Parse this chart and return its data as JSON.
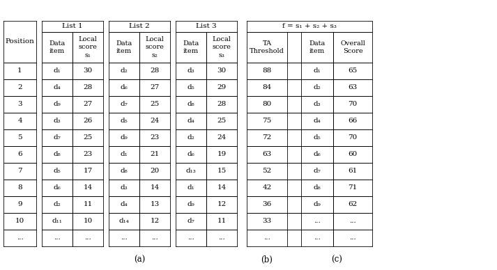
{
  "positions": [
    "1",
    "2",
    "3",
    "4",
    "5",
    "6",
    "7",
    "8",
    "9",
    "10",
    "..."
  ],
  "list1_data": [
    "d₁",
    "d₄",
    "d₉",
    "d₃",
    "d₇",
    "d₈",
    "d₅",
    "d₆",
    "d₂",
    "d₁₁",
    "..."
  ],
  "list1_scores": [
    "30",
    "28",
    "27",
    "26",
    "25",
    "23",
    "17",
    "14",
    "11",
    "10",
    "..."
  ],
  "list2_data": [
    "d₂",
    "d₆",
    "d₇",
    "d₅",
    "d₉",
    "d₁",
    "d₈",
    "d₃",
    "d₄",
    "d₁₄",
    "..."
  ],
  "list2_scores": [
    "28",
    "27",
    "25",
    "24",
    "23",
    "21",
    "20",
    "14",
    "13",
    "12",
    "..."
  ],
  "list3_data": [
    "d₃",
    "d₅",
    "d₈",
    "d₄",
    "d₂",
    "d₆",
    "d₁₃",
    "d₁",
    "d₉",
    "d₇",
    "..."
  ],
  "list3_scores": [
    "30",
    "29",
    "28",
    "25",
    "24",
    "19",
    "15",
    "14",
    "12",
    "11",
    "..."
  ],
  "ta_threshold": [
    "88",
    "84",
    "80",
    "75",
    "72",
    "63",
    "52",
    "42",
    "36",
    "33",
    "..."
  ],
  "overall_data": [
    "d₁",
    "d₂",
    "d₃",
    "d₄",
    "d₅",
    "d₆",
    "d₇",
    "d₈",
    "d₉",
    "...",
    "..."
  ],
  "overall_scores": [
    "65",
    "63",
    "70",
    "66",
    "70",
    "60",
    "61",
    "71",
    "62",
    "...",
    "..."
  ],
  "caption_a": "(a)",
  "caption_b": "(b)",
  "caption_c": "(c)",
  "fig_caption": "f = s₁ + s₂ + s₃"
}
